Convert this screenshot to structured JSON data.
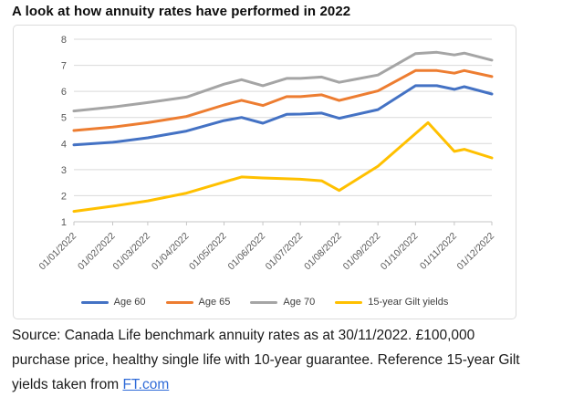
{
  "page_title": "A look at how annuity rates have performed in 2022",
  "footer": {
    "line1": "Source: Canada Life benchmark annuity rates as at 30/11/2022. £100,000",
    "line2": "purchase price, healthy single life with 10-year guarantee. Reference 15-year Gilt",
    "line3_prefix": "yields taken from ",
    "link_text": "FT.com"
  },
  "chart_data": {
    "type": "line",
    "title": "",
    "xlabel": "",
    "ylabel": "",
    "ylim": [
      1,
      8
    ],
    "y_ticks": [
      1,
      2,
      3,
      4,
      5,
      6,
      7,
      8
    ],
    "grid": true,
    "legend_position": "bottom",
    "x_axis_unit": "days from 01/01/2022",
    "x_total_days": 334,
    "x_labels": [
      "01/01/2022",
      "01/02/2022",
      "01/03/2022",
      "01/04/2022",
      "01/05/2022",
      "01/06/2022",
      "01/07/2022",
      "01/08/2022",
      "01/09/2022",
      "01/10/2022",
      "01/11/2022",
      "01/12/2022"
    ],
    "x_label_days": [
      0,
      31,
      59,
      90,
      120,
      151,
      181,
      212,
      243,
      273,
      304,
      334
    ],
    "series": [
      {
        "name": "Age 60",
        "color": "#4472C4",
        "points": [
          [
            0,
            3.95
          ],
          [
            31,
            4.05
          ],
          [
            59,
            4.22
          ],
          [
            90,
            4.48
          ],
          [
            120,
            4.88
          ],
          [
            134,
            5.0
          ],
          [
            151,
            4.78
          ],
          [
            170,
            5.12
          ],
          [
            181,
            5.13
          ],
          [
            198,
            5.17
          ],
          [
            212,
            4.97
          ],
          [
            243,
            5.3
          ],
          [
            273,
            6.22
          ],
          [
            290,
            6.22
          ],
          [
            304,
            6.08
          ],
          [
            312,
            6.18
          ],
          [
            334,
            5.9
          ]
        ]
      },
      {
        "name": "Age 65",
        "color": "#ED7D31",
        "points": [
          [
            0,
            4.5
          ],
          [
            31,
            4.63
          ],
          [
            59,
            4.8
          ],
          [
            90,
            5.04
          ],
          [
            120,
            5.48
          ],
          [
            134,
            5.66
          ],
          [
            151,
            5.46
          ],
          [
            170,
            5.8
          ],
          [
            181,
            5.8
          ],
          [
            198,
            5.87
          ],
          [
            212,
            5.65
          ],
          [
            243,
            6.02
          ],
          [
            273,
            6.8
          ],
          [
            290,
            6.8
          ],
          [
            304,
            6.7
          ],
          [
            312,
            6.8
          ],
          [
            334,
            6.57
          ]
        ]
      },
      {
        "name": "Age 70",
        "color": "#A5A5A5",
        "points": [
          [
            0,
            5.25
          ],
          [
            31,
            5.4
          ],
          [
            59,
            5.57
          ],
          [
            90,
            5.78
          ],
          [
            120,
            6.28
          ],
          [
            134,
            6.45
          ],
          [
            151,
            6.22
          ],
          [
            170,
            6.5
          ],
          [
            181,
            6.5
          ],
          [
            198,
            6.55
          ],
          [
            212,
            6.35
          ],
          [
            243,
            6.63
          ],
          [
            273,
            7.45
          ],
          [
            290,
            7.5
          ],
          [
            304,
            7.4
          ],
          [
            312,
            7.47
          ],
          [
            334,
            7.2
          ]
        ]
      },
      {
        "name": "15-year Gilt yields",
        "color": "#FFC000",
        "points": [
          [
            0,
            1.4
          ],
          [
            31,
            1.6
          ],
          [
            59,
            1.8
          ],
          [
            90,
            2.1
          ],
          [
            134,
            2.72
          ],
          [
            151,
            2.68
          ],
          [
            181,
            2.63
          ],
          [
            198,
            2.57
          ],
          [
            212,
            2.2
          ],
          [
            243,
            3.13
          ],
          [
            283,
            4.8
          ],
          [
            304,
            3.7
          ],
          [
            312,
            3.78
          ],
          [
            334,
            3.45
          ]
        ]
      }
    ],
    "colors": {
      "gridline": "#d9d9d9",
      "axis_line": "#c6c6c6",
      "axis_text": "#595959",
      "legend_text": "#404040"
    }
  }
}
